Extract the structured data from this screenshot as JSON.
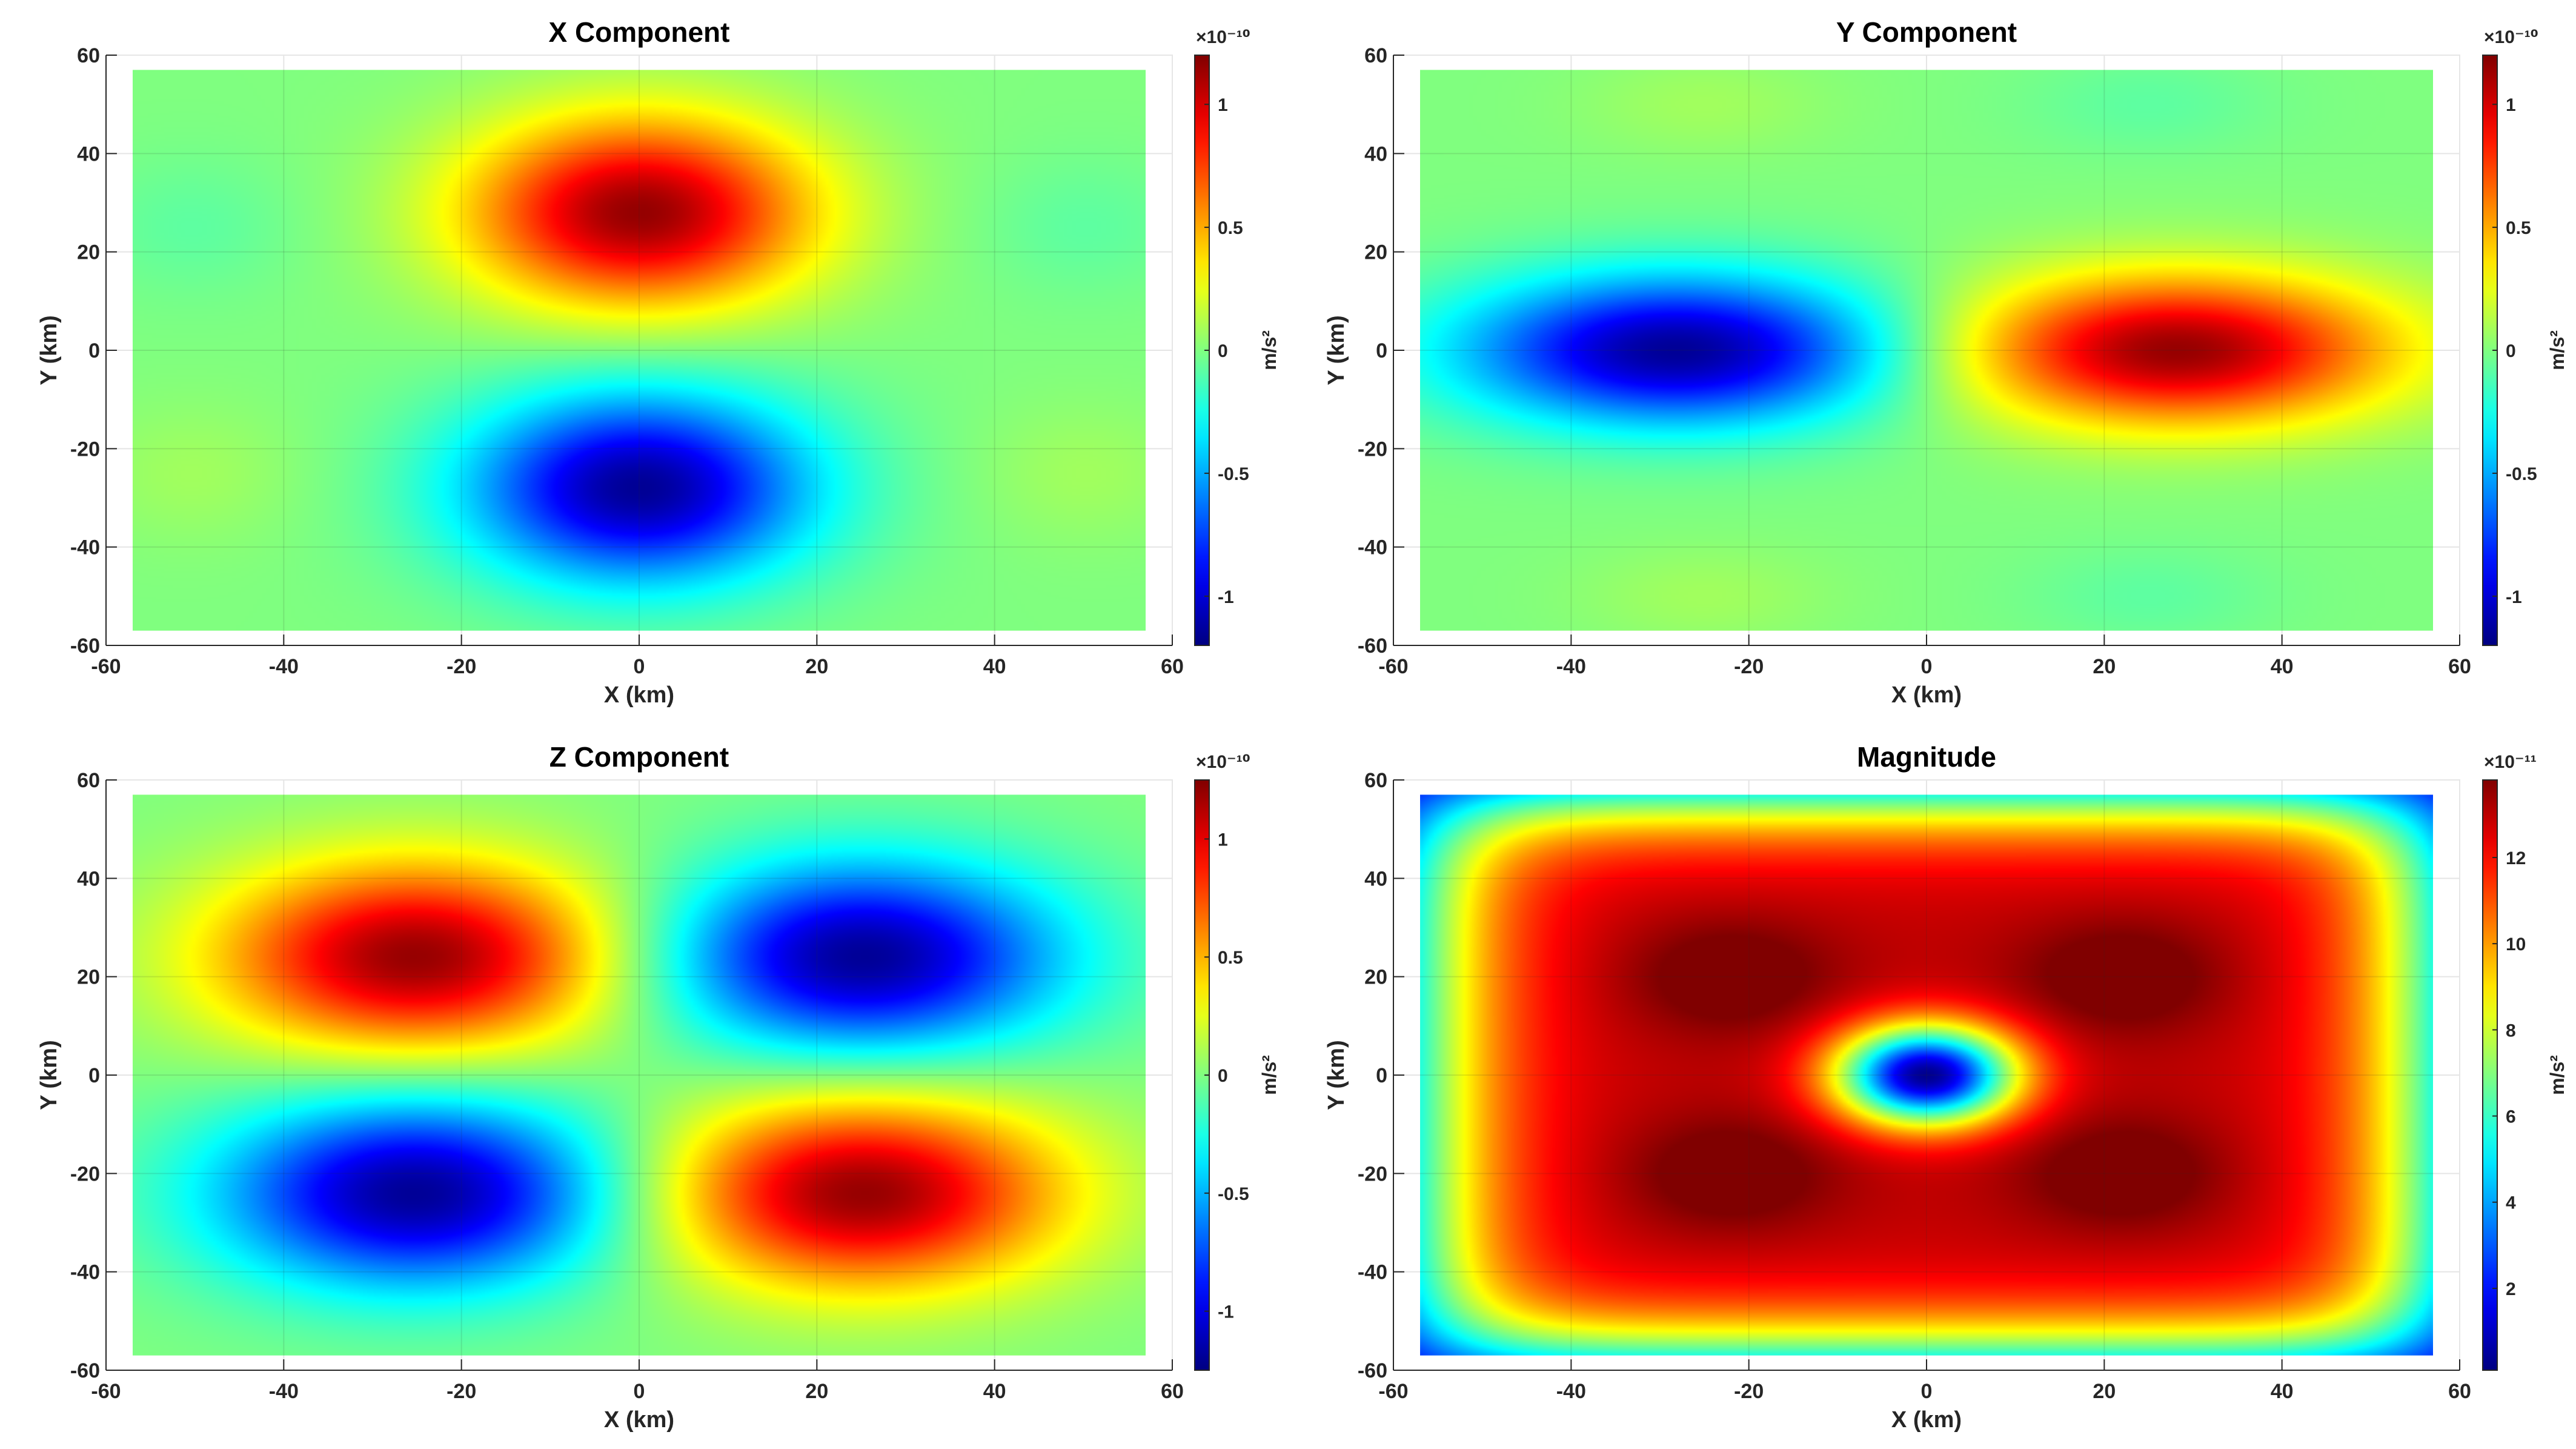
{
  "figure": {
    "colormap": "jet",
    "colormap_stops": [
      "#00007f",
      "#0000ff",
      "#007fff",
      "#00ffff",
      "#7fff7f",
      "#ffff00",
      "#ff7f00",
      "#ff0000",
      "#7f0000"
    ]
  },
  "chart_data": [
    {
      "type": "heatmap",
      "title": "X Component",
      "xlabel": "X (km)",
      "ylabel": "Y (km)",
      "xlim": [
        -60,
        60
      ],
      "ylim": [
        -60,
        60
      ],
      "xticks": [
        "-60",
        "-40",
        "-20",
        "0",
        "20",
        "40",
        "60"
      ],
      "yticks": [
        "-60",
        "-40",
        "-20",
        "0",
        "20",
        "40",
        "60"
      ],
      "data_extent": [
        -57,
        57
      ],
      "grid": true,
      "colorbar": {
        "label": "m/s²",
        "exponent": "×10⁻¹⁰",
        "range": [
          -1.2,
          1.2
        ],
        "ticks": [
          -1,
          -0.5,
          0,
          0.5,
          1
        ],
        "tick_labels": [
          "-1",
          "-0.5",
          "0",
          "0.5",
          "1"
        ]
      },
      "field": "x"
    },
    {
      "type": "heatmap",
      "title": "Y Component",
      "xlabel": "X (km)",
      "ylabel": "Y (km)",
      "xlim": [
        -60,
        60
      ],
      "ylim": [
        -60,
        60
      ],
      "xticks": [
        "-60",
        "-40",
        "-20",
        "0",
        "20",
        "40",
        "60"
      ],
      "yticks": [
        "-60",
        "-40",
        "-20",
        "0",
        "20",
        "40",
        "60"
      ],
      "data_extent": [
        -57,
        57
      ],
      "grid": true,
      "colorbar": {
        "label": "m/s²",
        "exponent": "×10⁻¹⁰",
        "range": [
          -1.2,
          1.2
        ],
        "ticks": [
          -1,
          -0.5,
          0,
          0.5,
          1
        ],
        "tick_labels": [
          "-1",
          "-0.5",
          "0",
          "0.5",
          "1"
        ]
      },
      "field": "y"
    },
    {
      "type": "heatmap",
      "title": "Z Component",
      "xlabel": "X (km)",
      "ylabel": "Y (km)",
      "xlim": [
        -60,
        60
      ],
      "ylim": [
        -60,
        60
      ],
      "xticks": [
        "-60",
        "-40",
        "-20",
        "0",
        "20",
        "40",
        "60"
      ],
      "yticks": [
        "-60",
        "-40",
        "-20",
        "0",
        "20",
        "40",
        "60"
      ],
      "data_extent": [
        -57,
        57
      ],
      "grid": true,
      "colorbar": {
        "label": "m/s²",
        "exponent": "×10⁻¹⁰",
        "range": [
          -1.25,
          1.25
        ],
        "ticks": [
          -1,
          -0.5,
          0,
          0.5,
          1
        ],
        "tick_labels": [
          "-1",
          "-0.5",
          "0",
          "0.5",
          "1"
        ]
      },
      "field": "z"
    },
    {
      "type": "heatmap",
      "title": "Magnitude",
      "xlabel": "X (km)",
      "ylabel": "Y (km)",
      "xlim": [
        -60,
        60
      ],
      "ylim": [
        -60,
        60
      ],
      "xticks": [
        "-60",
        "-40",
        "-20",
        "0",
        "20",
        "40",
        "60"
      ],
      "yticks": [
        "-60",
        "-40",
        "-20",
        "0",
        "20",
        "40",
        "60"
      ],
      "data_extent": [
        -57,
        57
      ],
      "grid": true,
      "colorbar": {
        "label": "m/s²",
        "exponent": "×10⁻¹¹",
        "range": [
          0.1,
          13.8
        ],
        "ticks": [
          2,
          4,
          6,
          8,
          10,
          12
        ],
        "tick_labels": [
          "2",
          "4",
          "6",
          "8",
          "10",
          "12"
        ]
      },
      "field": "mag"
    }
  ]
}
